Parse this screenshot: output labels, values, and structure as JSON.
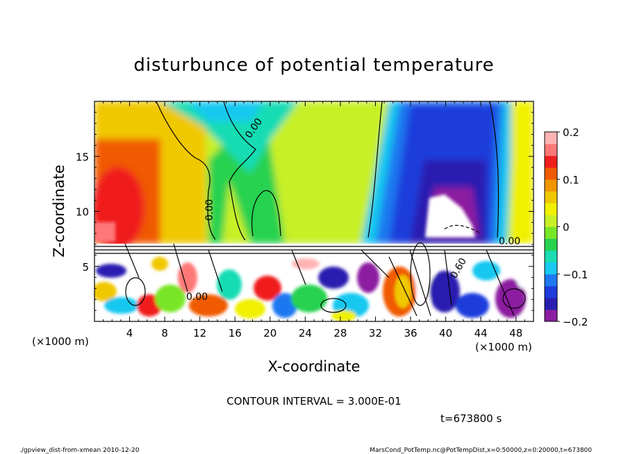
{
  "chart_data": {
    "type": "heatmap",
    "title": "disturbunce of potential temperature",
    "xlabel": "X-coordinate",
    "ylabel": "Z-coordinate",
    "x_unit": "(×1000 m)",
    "y_unit": "(×1000 m)",
    "xlim": [
      0,
      50
    ],
    "ylim": [
      0,
      20
    ],
    "x_ticks": [
      "4",
      "8",
      "12",
      "16",
      "20",
      "24",
      "28",
      "32",
      "36",
      "40",
      "44",
      "48"
    ],
    "y_ticks": [
      "5",
      "10",
      "15"
    ],
    "colorbar": {
      "range": [
        -0.2,
        0.2
      ],
      "tick_labels": [
        "0.2",
        "0.1",
        "0",
        "−0.1",
        "−0.2"
      ],
      "colors": [
        "#8c1ea0",
        "#2a1fb0",
        "#1f3cdc",
        "#1e78f0",
        "#19c8f0",
        "#19dcb4",
        "#28d250",
        "#78e628",
        "#c8f028",
        "#f0f000",
        "#f0c800",
        "#f09600",
        "#f05a00",
        "#f01e1e",
        "#ff7878",
        "#ffb4b4"
      ]
    },
    "contour_labels": [
      "0.00",
      "0.00",
      "0.00",
      "0.60",
      "0.00"
    ],
    "contour_interval": "CONTOUR INTERVAL = 3.000E-01",
    "time_label": "t=673800 s"
  },
  "footer": {
    "left": "./gpview_dist-from-xmean 2010-12-20",
    "right": "MarsCond_PotTemp.nc@PotTempDist,x=0:50000,z=0:20000,t=673800"
  }
}
